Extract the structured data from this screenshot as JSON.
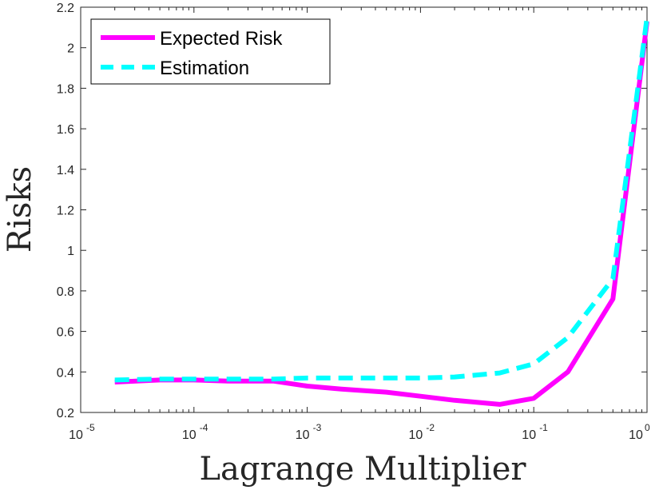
{
  "chart_data": {
    "type": "line",
    "title": "",
    "xlabel": "Lagrange Multiplier",
    "ylabel": "Risks",
    "xscale": "log",
    "xlim": [
      1e-05,
      1
    ],
    "ylim": [
      0.2,
      2.2
    ],
    "xticks": [
      {
        "value": 1e-05,
        "base": "10",
        "exp": "-5"
      },
      {
        "value": 0.0001,
        "base": "10",
        "exp": "-4"
      },
      {
        "value": 0.001,
        "base": "10",
        "exp": "-3"
      },
      {
        "value": 0.01,
        "base": "10",
        "exp": "-2"
      },
      {
        "value": 0.1,
        "base": "10",
        "exp": "-1"
      },
      {
        "value": 1,
        "base": "10",
        "exp": "0"
      }
    ],
    "yticks": [
      {
        "value": 0.2,
        "label": "0.2"
      },
      {
        "value": 0.4,
        "label": "0.4"
      },
      {
        "value": 0.6,
        "label": "0.6"
      },
      {
        "value": 0.8,
        "label": "0.8"
      },
      {
        "value": 1.0,
        "label": "1"
      },
      {
        "value": 1.2,
        "label": "1.2"
      },
      {
        "value": 1.4,
        "label": "1.4"
      },
      {
        "value": 1.6,
        "label": "1.6"
      },
      {
        "value": 1.8,
        "label": "1.8"
      },
      {
        "value": 2.0,
        "label": "2"
      },
      {
        "value": 2.2,
        "label": "2.2"
      }
    ],
    "x": [
      2e-05,
      5e-05,
      0.0001,
      0.0002,
      0.0005,
      0.001,
      0.002,
      0.005,
      0.01,
      0.02,
      0.05,
      0.1,
      0.2,
      0.5,
      1
    ],
    "series": [
      {
        "name": "Expected Risk",
        "color": "#ff00ff",
        "style": "solid",
        "values": [
          0.35,
          0.36,
          0.36,
          0.355,
          0.355,
          0.33,
          0.315,
          0.3,
          0.28,
          0.26,
          0.24,
          0.27,
          0.4,
          0.76,
          2.13
        ]
      },
      {
        "name": "Estimation",
        "color": "#00ffff",
        "style": "dashed",
        "values": [
          0.36,
          0.365,
          0.365,
          0.365,
          0.365,
          0.37,
          0.37,
          0.37,
          0.37,
          0.375,
          0.395,
          0.44,
          0.57,
          0.86,
          2.15
        ]
      }
    ],
    "legend": "top-left",
    "grid": false
  }
}
